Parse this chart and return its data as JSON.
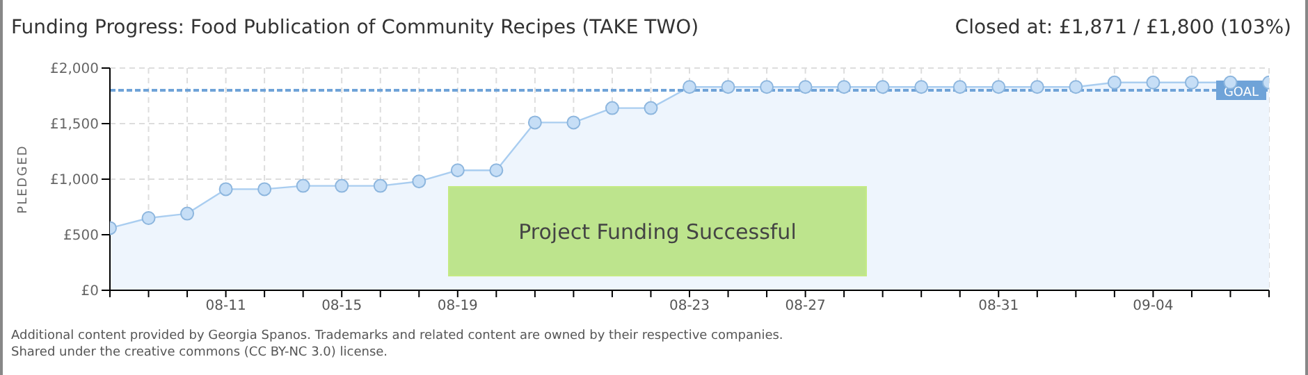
{
  "chart_data": {
    "type": "area",
    "title": "Funding Progress: Food Publication of Community Recipes (TAKE TWO)",
    "subtitle": "Closed at:  £1,871 / £1,800 (103%)",
    "ylabel": "PLEDGED",
    "categories": [
      null,
      null,
      null,
      "08-11",
      null,
      null,
      "08-15",
      null,
      null,
      "08-19",
      null,
      null,
      null,
      null,
      null,
      "08-23",
      null,
      null,
      "08-27",
      null,
      null,
      null,
      null,
      "08-31",
      null,
      null,
      null,
      "09-04",
      null,
      null,
      null
    ],
    "series": [
      {
        "color": "#a9cdf0",
        "values": [
          560,
          650,
          690,
          910,
          910,
          940,
          940,
          940,
          980,
          1080,
          1080,
          1510,
          1510,
          1640,
          1640,
          1830,
          1830,
          1830,
          1830,
          1830,
          1830,
          1830,
          1830,
          1830,
          1830,
          1830,
          1870,
          1870,
          1870,
          1870,
          1870
        ]
      }
    ],
    "ylim": [
      0,
      2000
    ],
    "yticks": [
      {
        "value": 0,
        "label": "£0"
      },
      {
        "value": 500,
        "label": "£500"
      },
      {
        "value": 1000,
        "label": "£1,000"
      },
      {
        "value": 1500,
        "label": "£1,500"
      },
      {
        "value": 2000,
        "label": "£2,000"
      }
    ],
    "grid": true,
    "marker": "circle",
    "legend": false,
    "ref_lines": [
      {
        "axis": "y",
        "value": 1800,
        "label": "GOAL",
        "color": "#6fa3d8",
        "line_style": "dashed"
      }
    ],
    "annotations": [
      "Project Funding Successful",
      "Additional content provided by Georgia Spanos. Trademarks and related content are owned by their respective companies.",
      "Shared under the creative commons (CC BY-NC 3.0) license."
    ]
  }
}
